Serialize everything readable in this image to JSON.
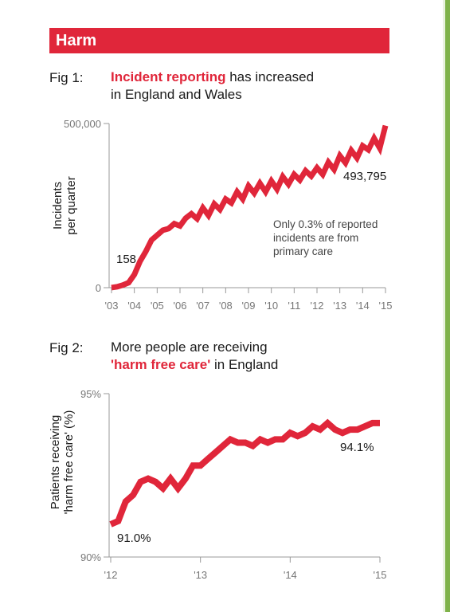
{
  "header": {
    "title": "Harm"
  },
  "fig1": {
    "label": "Fig 1:",
    "title_highlight": "Incident reporting",
    "title_rest_line1": " has increased",
    "title_line2": "in England and Wales"
  },
  "fig2": {
    "label": "Fig 2:",
    "title_line1": "More people are receiving",
    "title_highlight": "'harm free care'",
    "title_rest_line2": " in England"
  },
  "colors": {
    "accent": "#e0263a",
    "axis": "#999999",
    "green_edge": "#7fb24a"
  },
  "chart_data": [
    {
      "type": "line",
      "ylabel": "Incidents per quarter",
      "ylabel_lines": [
        "Incidents",
        "per quarter"
      ],
      "ylim": [
        0,
        500000
      ],
      "y_ticks": [
        0,
        500000
      ],
      "y_tick_labels": [
        "0",
        "500,000"
      ],
      "x_ticks": [
        "'03",
        "'04",
        "'05",
        "'06",
        "'07",
        "'08",
        "'09",
        "'10",
        "'11",
        "'12",
        "'13",
        "'14",
        "'15"
      ],
      "xlim": [
        2003,
        2015
      ],
      "grid": false,
      "annotations": [
        {
          "text": "158",
          "x": 2003.0,
          "y": 158
        },
        {
          "text": "493,795",
          "x": 2015.0,
          "y": 493795
        },
        {
          "text": "Only 0.3% of reported incidents are from primary care",
          "lines": [
            "Only 0.3% of reported",
            "incidents are from",
            "primary care"
          ]
        }
      ],
      "series": [
        {
          "x": [
            2003.0,
            2003.25,
            2003.5,
            2003.75,
            2004.0,
            2004.25,
            2004.5,
            2004.75,
            2005.0,
            2005.25,
            2005.5,
            2005.75,
            2006.0,
            2006.25,
            2006.5,
            2006.75,
            2007.0,
            2007.25,
            2007.5,
            2007.75,
            2008.0,
            2008.25,
            2008.5,
            2008.75,
            2009.0,
            2009.25,
            2009.5,
            2009.75,
            2010.0,
            2010.25,
            2010.5,
            2010.75,
            2011.0,
            2011.25,
            2011.5,
            2011.75,
            2012.0,
            2012.25,
            2012.5,
            2012.75,
            2013.0,
            2013.25,
            2013.5,
            2013.75,
            2014.0,
            2014.25,
            2014.5,
            2014.75,
            2015.0
          ],
          "y": [
            158,
            3000,
            8000,
            15000,
            40000,
            80000,
            110000,
            145000,
            160000,
            175000,
            180000,
            195000,
            188000,
            212000,
            225000,
            210000,
            243000,
            220000,
            255000,
            238000,
            270000,
            258000,
            292000,
            270000,
            310000,
            288000,
            318000,
            292000,
            325000,
            300000,
            338000,
            315000,
            345000,
            328000,
            356000,
            340000,
            365000,
            345000,
            382000,
            360000,
            402000,
            380000,
            418000,
            395000,
            432000,
            420000,
            455000,
            425000,
            493795
          ]
        }
      ]
    },
    {
      "type": "line",
      "ylabel": "Patients receiving 'harm free care' (%)",
      "ylabel_lines": [
        "Patients receiving",
        "'harm free care' (%)"
      ],
      "ylim": [
        90,
        95
      ],
      "y_ticks": [
        90,
        95
      ],
      "y_tick_labels": [
        "90%",
        "95%"
      ],
      "x_ticks": [
        "'12",
        "'13",
        "'14",
        "'15"
      ],
      "xlim": [
        2012,
        2015
      ],
      "grid": false,
      "annotations": [
        {
          "text": "91.0%",
          "x": 2012.0,
          "y": 91.0
        },
        {
          "text": "94.1%",
          "x": 2015.0,
          "y": 94.1
        }
      ],
      "series": [
        {
          "x": [
            2012.0,
            2012.083,
            2012.167,
            2012.25,
            2012.333,
            2012.417,
            2012.5,
            2012.583,
            2012.667,
            2012.75,
            2012.833,
            2012.917,
            2013.0,
            2013.083,
            2013.167,
            2013.25,
            2013.333,
            2013.417,
            2013.5,
            2013.583,
            2013.667,
            2013.75,
            2013.833,
            2013.917,
            2014.0,
            2014.083,
            2014.167,
            2014.25,
            2014.333,
            2014.417,
            2014.5,
            2014.583,
            2014.667,
            2014.75,
            2014.833,
            2014.917,
            2015.0
          ],
          "y": [
            91.0,
            91.1,
            91.7,
            91.9,
            92.3,
            92.4,
            92.3,
            92.1,
            92.4,
            92.1,
            92.4,
            92.8,
            92.8,
            93.0,
            93.2,
            93.4,
            93.6,
            93.5,
            93.5,
            93.4,
            93.6,
            93.5,
            93.6,
            93.6,
            93.8,
            93.7,
            93.8,
            94.0,
            93.9,
            94.1,
            93.9,
            93.8,
            93.9,
            93.9,
            94.0,
            94.1,
            94.1
          ]
        }
      ]
    }
  ]
}
